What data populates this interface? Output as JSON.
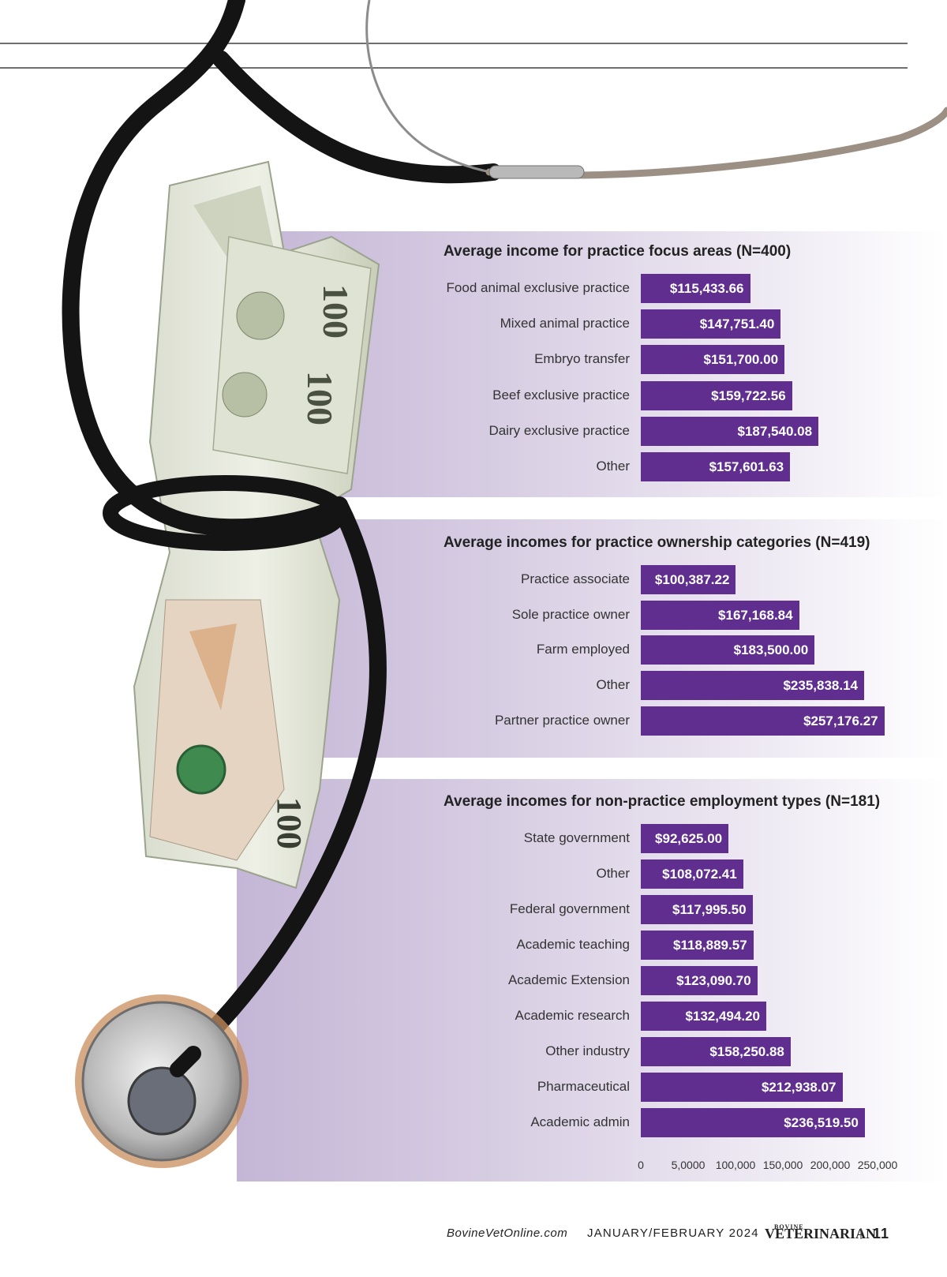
{
  "chart_data": [
    {
      "type": "bar",
      "orientation": "horizontal",
      "title": "Average income for practice focus areas (N=400)",
      "categories": [
        "Food animal exclusive practice",
        "Mixed animal practice",
        "Embryo transfer",
        "Beef exclusive practice",
        "Dairy exclusive practice",
        "Other"
      ],
      "values": [
        115433.66,
        147751.4,
        151700.0,
        159722.56,
        187540.08,
        157601.63
      ],
      "value_labels": [
        "$115,433.66",
        "$147,751.40",
        "$151,700.00",
        "$159,722.56",
        "$187,540.08",
        "$157,601.63"
      ],
      "xlim": [
        0,
        250000
      ],
      "grid": false
    },
    {
      "type": "bar",
      "orientation": "horizontal",
      "title": "Average incomes for practice ownership categories (N=419)",
      "categories": [
        "Practice associate",
        "Sole practice owner",
        "Farm employed",
        "Other",
        "Partner practice owner"
      ],
      "values": [
        100387.22,
        167168.84,
        183500.0,
        235838.14,
        257176.27
      ],
      "value_labels": [
        "$100,387.22",
        "$167,168.84",
        "$183,500.00",
        "$235,838.14",
        "$257,176.27"
      ],
      "xlim": [
        0,
        250000
      ],
      "grid": false
    },
    {
      "type": "bar",
      "orientation": "horizontal",
      "title": "Average incomes for non-practice employment types (N=181)",
      "categories": [
        "State government",
        "Other",
        "Federal government",
        "Academic teaching",
        "Academic Extension",
        "Academic research",
        "Other industry",
        "Pharmaceutical",
        "Academic admin"
      ],
      "values": [
        92625.0,
        108072.41,
        117995.5,
        118889.57,
        123090.7,
        132494.2,
        158250.88,
        212938.07,
        236519.5
      ],
      "value_labels": [
        "$92,625.00",
        "$108,072.41",
        "$117,995.50",
        "$118,889.57",
        "$123,090.70",
        "$132,494.20",
        "$158,250.88",
        "$212,938.07",
        "$236,519.50"
      ],
      "xlim": [
        0,
        250000
      ],
      "x_tick_values": [
        0,
        50000,
        100000,
        150000,
        200000,
        250000
      ],
      "x_tick_labels": [
        "0",
        "5,0000",
        "100,000",
        "150,000",
        "200,000",
        "250,000"
      ],
      "grid": false
    }
  ],
  "colors": {
    "bar": "#5f2e8f",
    "bar_text": "#ffffff",
    "panel": "#c9bcd9"
  },
  "footer": {
    "site": "BovineVetOnline.com",
    "issue": "JANUARY/FEBRUARY 2024",
    "logo_small": "BOVINE",
    "logo_main": "VETERINARIAN",
    "separator": "|",
    "page": "11"
  },
  "decoration": {
    "photo": "stethoscope-icon tied around rolled dollar bills"
  }
}
